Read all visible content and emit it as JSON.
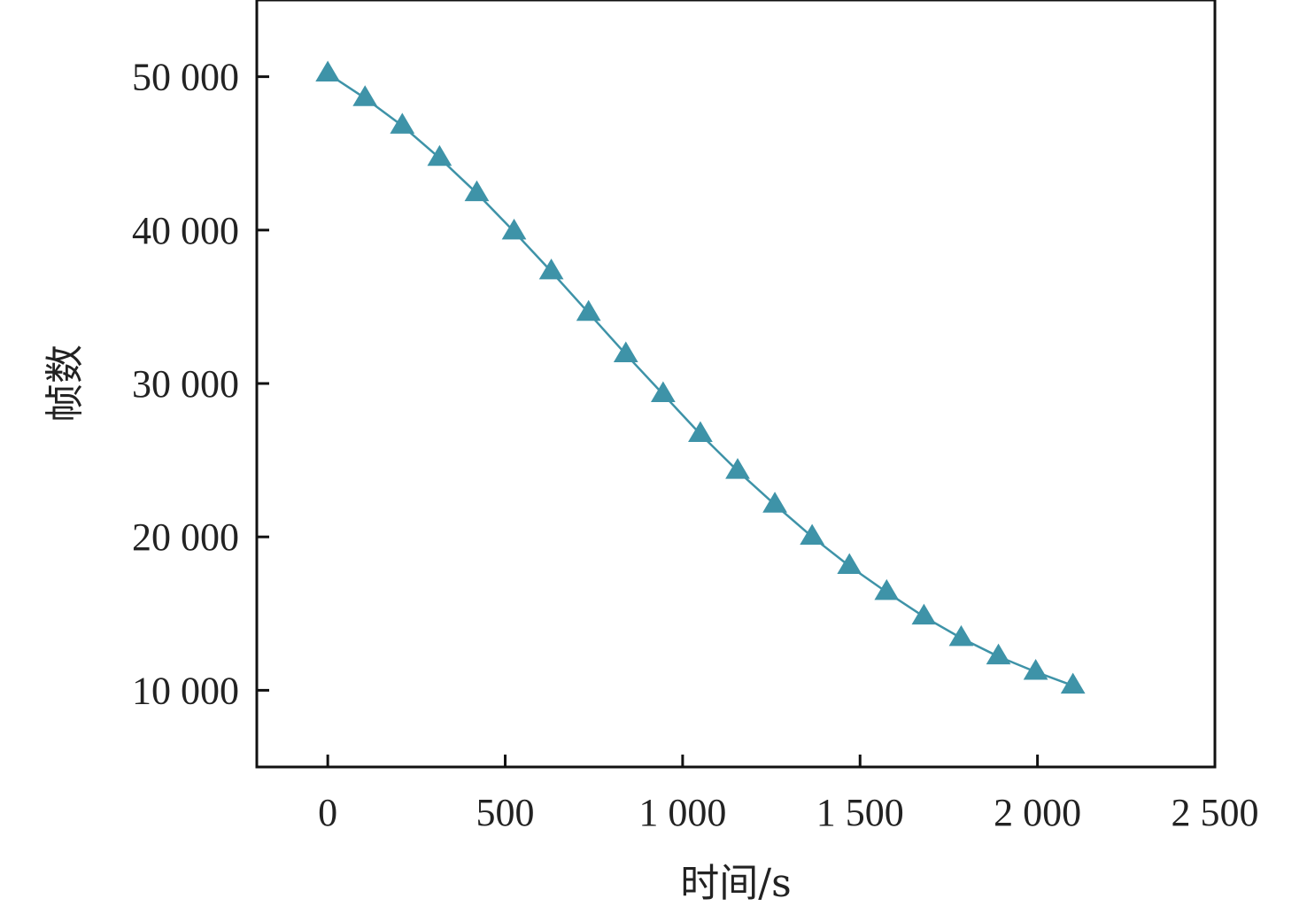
{
  "chart_data": {
    "type": "line",
    "title": "",
    "xlabel": "时间/s",
    "ylabel": "帧数",
    "xlim": [
      -200,
      2500
    ],
    "ylim": [
      5000,
      55000
    ],
    "x_ticks": [
      0,
      500,
      1000,
      1500,
      2000,
      2500
    ],
    "x_tick_labels": [
      "0",
      "500",
      "1 000",
      "1 500",
      "2 000",
      "2 500"
    ],
    "y_ticks": [
      10000,
      20000,
      30000,
      40000,
      50000
    ],
    "y_tick_labels": [
      "10 000",
      "20 000",
      "30 000",
      "40 000",
      "50 000"
    ],
    "grid": false,
    "legend": "none",
    "series": [
      {
        "marker": "triangle",
        "color": "#3e93a8",
        "x": [
          0,
          105,
          210,
          315,
          420,
          525,
          630,
          735,
          840,
          945,
          1050,
          1155,
          1260,
          1365,
          1470,
          1575,
          1680,
          1785,
          1890,
          1995,
          2100
        ],
        "y": [
          50200,
          48600,
          46800,
          44700,
          42400,
          39900,
          37300,
          34600,
          31900,
          29300,
          26700,
          24300,
          22100,
          20000,
          18100,
          16400,
          14800,
          13400,
          12200,
          11200,
          10300
        ]
      }
    ]
  }
}
